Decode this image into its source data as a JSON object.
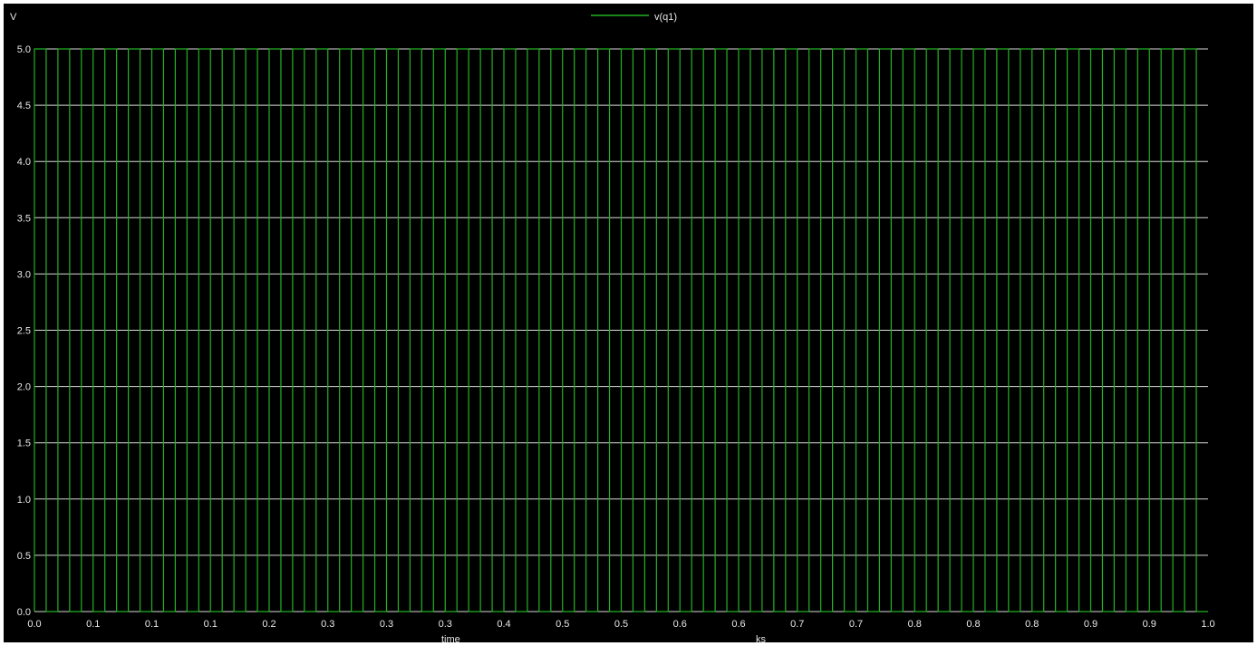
{
  "colors": {
    "background": "#000000",
    "grid": "#d9d9d9",
    "text": "#e8e8e8",
    "series": "#22b322"
  },
  "chart_data": {
    "type": "line",
    "title": "",
    "xlabel": "time",
    "xunit": "ks",
    "ylabel": "V",
    "xlim": [
      0,
      1
    ],
    "ylim": [
      0,
      5
    ],
    "x_tick_labels": [
      "0.0",
      "0.1",
      "0.1",
      "0.1",
      "0.2",
      "0.3",
      "0.3",
      "0.3",
      "0.4",
      "0.5",
      "0.5",
      "0.6",
      "0.6",
      "0.7",
      "0.7",
      "0.8",
      "0.8",
      "0.8",
      "0.9",
      "0.9",
      "1.0"
    ],
    "y_tick_values": [
      0.0,
      0.5,
      1.0,
      1.5,
      2.0,
      2.5,
      3.0,
      3.5,
      4.0,
      4.5,
      5.0
    ],
    "y_tick_labels": [
      "0.0",
      "0.5",
      "1.0",
      "1.5",
      "2.0",
      "2.5",
      "3.0",
      "3.5",
      "4.0",
      "4.5",
      "5.0"
    ],
    "grid": true,
    "legend_position": "top-center",
    "series": [
      {
        "name": "v(q1)",
        "waveform": "square",
        "low": 0,
        "high": 5,
        "period": 0.02,
        "duty": 0.5,
        "t_start": 0,
        "t_end": 1
      }
    ]
  }
}
